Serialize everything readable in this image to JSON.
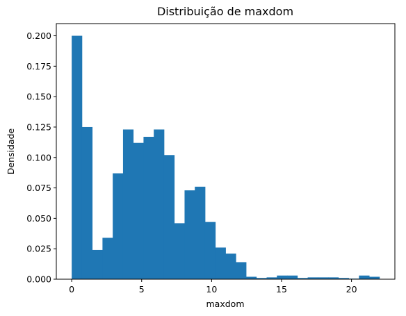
{
  "chart_data": {
    "type": "bar",
    "title": "Distribuição de maxdom",
    "xlabel": "maxdom",
    "ylabel": "Densidade",
    "xlim": [
      -1.1,
      23.1
    ],
    "ylim": [
      0,
      0.21
    ],
    "x_ticks": [
      0,
      5,
      10,
      15,
      20
    ],
    "y_ticks": [
      0.0,
      0.025,
      0.05,
      0.075,
      0.1,
      0.125,
      0.15,
      0.175,
      0.2
    ],
    "y_tick_labels": [
      "0.000",
      "0.025",
      "0.050",
      "0.075",
      "0.100",
      "0.125",
      "0.150",
      "0.175",
      "0.200"
    ],
    "bar_color": "#1f77b4",
    "grid": false,
    "bins": [
      {
        "x0": 0.0,
        "x1": 0.733,
        "value": 0.2
      },
      {
        "x0": 0.733,
        "x1": 1.467,
        "value": 0.125
      },
      {
        "x0": 1.467,
        "x1": 2.2,
        "value": 0.024
      },
      {
        "x0": 2.2,
        "x1": 2.933,
        "value": 0.034
      },
      {
        "x0": 2.933,
        "x1": 3.667,
        "value": 0.087
      },
      {
        "x0": 3.667,
        "x1": 4.4,
        "value": 0.123
      },
      {
        "x0": 4.4,
        "x1": 5.133,
        "value": 0.112
      },
      {
        "x0": 5.133,
        "x1": 5.867,
        "value": 0.117
      },
      {
        "x0": 5.867,
        "x1": 6.6,
        "value": 0.123
      },
      {
        "x0": 6.6,
        "x1": 7.333,
        "value": 0.102
      },
      {
        "x0": 7.333,
        "x1": 8.067,
        "value": 0.046
      },
      {
        "x0": 8.067,
        "x1": 8.8,
        "value": 0.073
      },
      {
        "x0": 8.8,
        "x1": 9.533,
        "value": 0.076
      },
      {
        "x0": 9.533,
        "x1": 10.267,
        "value": 0.047
      },
      {
        "x0": 10.267,
        "x1": 11.0,
        "value": 0.026
      },
      {
        "x0": 11.0,
        "x1": 11.733,
        "value": 0.021
      },
      {
        "x0": 11.733,
        "x1": 12.467,
        "value": 0.014
      },
      {
        "x0": 12.467,
        "x1": 13.2,
        "value": 0.002
      },
      {
        "x0": 13.2,
        "x1": 13.933,
        "value": 0.001
      },
      {
        "x0": 13.933,
        "x1": 14.667,
        "value": 0.0015
      },
      {
        "x0": 14.667,
        "x1": 15.4,
        "value": 0.003
      },
      {
        "x0": 15.4,
        "x1": 16.133,
        "value": 0.003
      },
      {
        "x0": 16.133,
        "x1": 16.867,
        "value": 0.001
      },
      {
        "x0": 16.867,
        "x1": 17.6,
        "value": 0.0015
      },
      {
        "x0": 17.6,
        "x1": 18.333,
        "value": 0.0015
      },
      {
        "x0": 18.333,
        "x1": 19.067,
        "value": 0.0015
      },
      {
        "x0": 19.067,
        "x1": 19.8,
        "value": 0.001
      },
      {
        "x0": 19.8,
        "x1": 20.533,
        "value": 0.0005
      },
      {
        "x0": 20.533,
        "x1": 21.267,
        "value": 0.003
      },
      {
        "x0": 21.267,
        "x1": 22.0,
        "value": 0.002
      }
    ]
  }
}
